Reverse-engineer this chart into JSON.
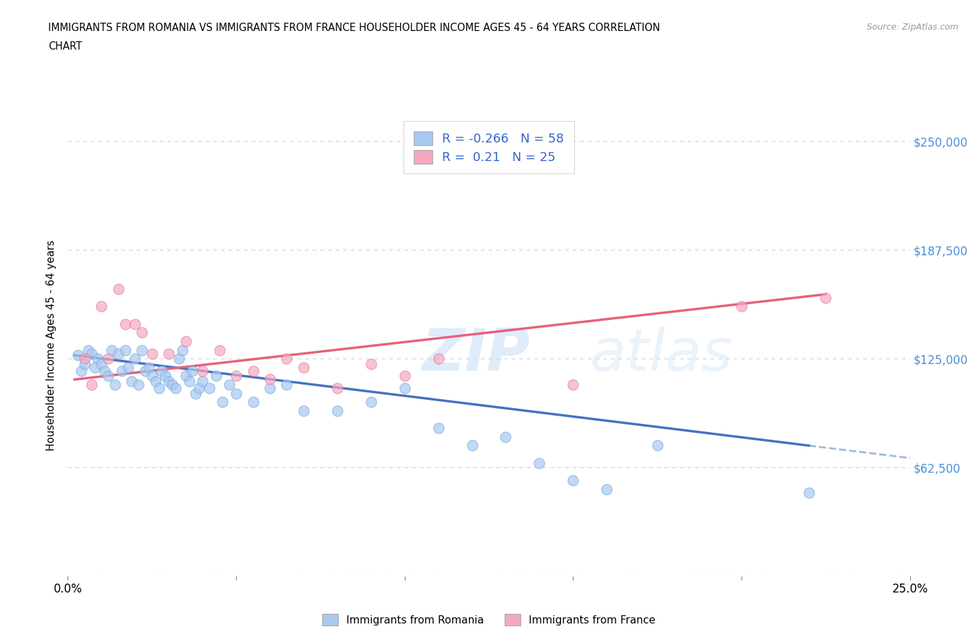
{
  "title_line1": "IMMIGRANTS FROM ROMANIA VS IMMIGRANTS FROM FRANCE HOUSEHOLDER INCOME AGES 45 - 64 YEARS CORRELATION",
  "title_line2": "CHART",
  "source_text": "Source: ZipAtlas.com",
  "ylabel": "Householder Income Ages 45 - 64 years",
  "xlim": [
    0.0,
    0.25
  ],
  "ylim": [
    0,
    265000
  ],
  "ytick_values": [
    0,
    62500,
    125000,
    187500,
    250000
  ],
  "ytick_labels": [
    "",
    "$62,500",
    "$125,000",
    "$187,500",
    "$250,000"
  ],
  "xtick_values": [
    0.0,
    0.05,
    0.1,
    0.15,
    0.2,
    0.25
  ],
  "xtick_labels": [
    "0.0%",
    "",
    "",
    "",
    "",
    "25.0%"
  ],
  "romania_R": -0.266,
  "romania_N": 58,
  "france_R": 0.21,
  "france_N": 25,
  "romania_color": "#a8c8f0",
  "france_color": "#f4a8c0",
  "romania_trend_color": "#4472c4",
  "france_trend_color": "#e8607a",
  "legend_label_romania": "Immigrants from Romania",
  "legend_label_france": "Immigrants from France",
  "watermark_zip": "ZIP",
  "watermark_atlas": "atlas",
  "romania_x": [
    0.003,
    0.004,
    0.005,
    0.006,
    0.007,
    0.008,
    0.009,
    0.01,
    0.011,
    0.012,
    0.013,
    0.014,
    0.015,
    0.016,
    0.017,
    0.018,
    0.019,
    0.02,
    0.021,
    0.022,
    0.023,
    0.024,
    0.025,
    0.026,
    0.027,
    0.028,
    0.029,
    0.03,
    0.031,
    0.032,
    0.033,
    0.034,
    0.035,
    0.036,
    0.037,
    0.038,
    0.039,
    0.04,
    0.042,
    0.044,
    0.046,
    0.048,
    0.05,
    0.055,
    0.06,
    0.065,
    0.07,
    0.08,
    0.09,
    0.1,
    0.11,
    0.12,
    0.13,
    0.14,
    0.15,
    0.16,
    0.175,
    0.22
  ],
  "romania_y": [
    127000,
    118000,
    122000,
    130000,
    128000,
    120000,
    125000,
    122000,
    118000,
    115000,
    130000,
    110000,
    128000,
    118000,
    130000,
    120000,
    112000,
    125000,
    110000,
    130000,
    118000,
    120000,
    115000,
    112000,
    108000,
    118000,
    115000,
    112000,
    110000,
    108000,
    125000,
    130000,
    115000,
    112000,
    118000,
    105000,
    108000,
    112000,
    108000,
    115000,
    100000,
    110000,
    105000,
    100000,
    108000,
    110000,
    95000,
    95000,
    100000,
    108000,
    85000,
    75000,
    80000,
    65000,
    55000,
    50000,
    75000,
    48000
  ],
  "france_x": [
    0.005,
    0.007,
    0.01,
    0.012,
    0.015,
    0.017,
    0.02,
    0.022,
    0.025,
    0.03,
    0.035,
    0.04,
    0.045,
    0.05,
    0.055,
    0.06,
    0.065,
    0.07,
    0.08,
    0.09,
    0.1,
    0.11,
    0.15,
    0.2,
    0.225
  ],
  "france_y": [
    125000,
    110000,
    155000,
    125000,
    165000,
    145000,
    145000,
    140000,
    128000,
    128000,
    135000,
    118000,
    130000,
    115000,
    118000,
    113000,
    125000,
    120000,
    108000,
    122000,
    115000,
    125000,
    110000,
    155000,
    160000
  ],
  "romania_trend_x0": 0.002,
  "romania_trend_y0": 127000,
  "romania_trend_x1": 0.22,
  "romania_trend_y1": 75000,
  "france_trend_x0": 0.002,
  "france_trend_y0": 113000,
  "france_trend_x1": 0.225,
  "france_trend_y1": 162000,
  "background_color": "#ffffff",
  "grid_color": "#cccccc"
}
